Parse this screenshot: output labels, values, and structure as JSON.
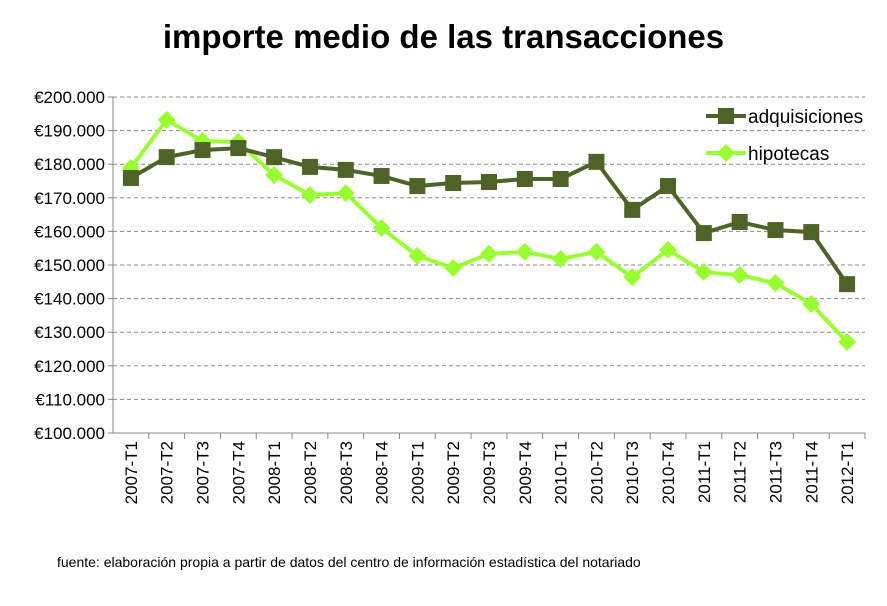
{
  "chart_data": {
    "type": "line",
    "title": "importe medio de las transacciones",
    "source": "fuente: elaboración propia a partir de datos del centro de información estadística del notariado",
    "categories": [
      "2007-T1",
      "2007-T2",
      "2007-T3",
      "2007-T4",
      "2008-T1",
      "2008-T2",
      "2008-T3",
      "2008-T4",
      "2009-T1",
      "2009-T2",
      "2009-T3",
      "2009-T4",
      "2010-T1",
      "2010-T2",
      "2010-T3",
      "2010-T4",
      "2011-T1",
      "2011-T2",
      "2011-T3",
      "2011-T4",
      "2012-T1"
    ],
    "ylim": [
      100000,
      200000
    ],
    "yticks": [
      100000,
      110000,
      120000,
      130000,
      140000,
      150000,
      160000,
      170000,
      180000,
      190000,
      200000
    ],
    "ytick_labels": [
      "€100.000",
      "€110.000",
      "€120.000",
      "€130.000",
      "€140.000",
      "€150.000",
      "€160.000",
      "€170.000",
      "€180.000",
      "€190.000",
      "€200.000"
    ],
    "grid": "horizontal dashed",
    "legend_position": "top-right",
    "series": [
      {
        "name": "adquisiciones",
        "color": "#4f6228",
        "marker": "square",
        "values": [
          175900,
          182100,
          184200,
          184800,
          182100,
          179200,
          178300,
          176500,
          173500,
          174400,
          174700,
          175600,
          175600,
          180700,
          166400,
          173500,
          159500,
          162800,
          160400,
          159800,
          144300
        ]
      },
      {
        "name": "hipotecas",
        "color": "#99ff33",
        "marker": "diamond",
        "values": [
          178900,
          193200,
          186900,
          186600,
          176800,
          170800,
          171400,
          161000,
          152700,
          149100,
          153300,
          153900,
          151800,
          153900,
          146400,
          154500,
          147900,
          147000,
          144600,
          138400,
          127100
        ]
      }
    ]
  }
}
